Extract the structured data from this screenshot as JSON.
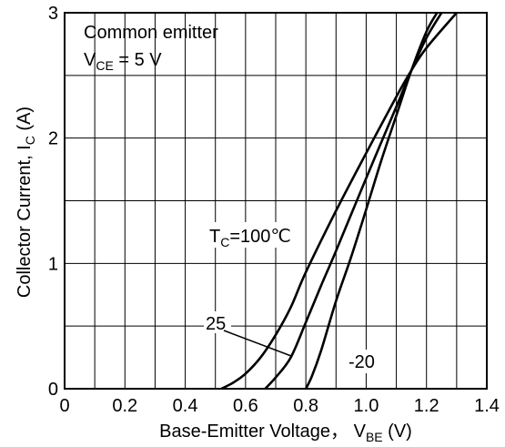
{
  "chart_data": {
    "type": "line",
    "title": "",
    "xlabel": {
      "main": "Base-Emitter Voltage， V",
      "sub": "BE",
      "unit": " (V)"
    },
    "ylabel": {
      "main": "Collector Current, I",
      "sub": "C",
      "unit": " (A)"
    },
    "xlim": [
      0,
      1.4
    ],
    "ylim": [
      0,
      3
    ],
    "xticks": [
      "0",
      "0.2",
      "0.4",
      "0.6",
      "0.8",
      "1.0",
      "1.2",
      "1.4"
    ],
    "yticks": [
      "0",
      "1",
      "2",
      "3"
    ],
    "grid": true,
    "conditions": {
      "line1": "Common emitter",
      "line2_main": "V",
      "line2_sub": "CE",
      "line2_rest": " = 5 V"
    },
    "curve_labels": {
      "t100_main": "T",
      "t100_sub": "C",
      "t100_rest": "=100℃",
      "t25": "25",
      "tm20": "-20"
    },
    "series": [
      {
        "name": "100",
        "x": [
          0.52,
          0.56,
          0.6,
          0.65,
          0.7,
          0.75,
          0.8,
          0.9,
          1.0,
          1.1,
          1.15,
          1.2,
          1.3
        ],
        "y": [
          0.0,
          0.05,
          0.12,
          0.25,
          0.43,
          0.65,
          0.93,
          1.42,
          1.88,
          2.33,
          2.54,
          2.72,
          3.0
        ]
      },
      {
        "name": "25",
        "x": [
          0.665,
          0.7,
          0.75,
          0.8,
          0.85,
          0.9,
          1.0,
          1.1,
          1.15,
          1.2,
          1.25
        ],
        "y": [
          0.0,
          0.09,
          0.25,
          0.53,
          0.82,
          1.1,
          1.68,
          2.25,
          2.54,
          2.8,
          3.0
        ]
      },
      {
        "name": "-20",
        "x": [
          0.8,
          0.82,
          0.85,
          0.9,
          0.95,
          1.0,
          1.05,
          1.1,
          1.15,
          1.2,
          1.235
        ],
        "y": [
          0.0,
          0.1,
          0.3,
          0.7,
          1.05,
          1.43,
          1.82,
          2.18,
          2.54,
          2.85,
          3.0
        ]
      }
    ]
  }
}
